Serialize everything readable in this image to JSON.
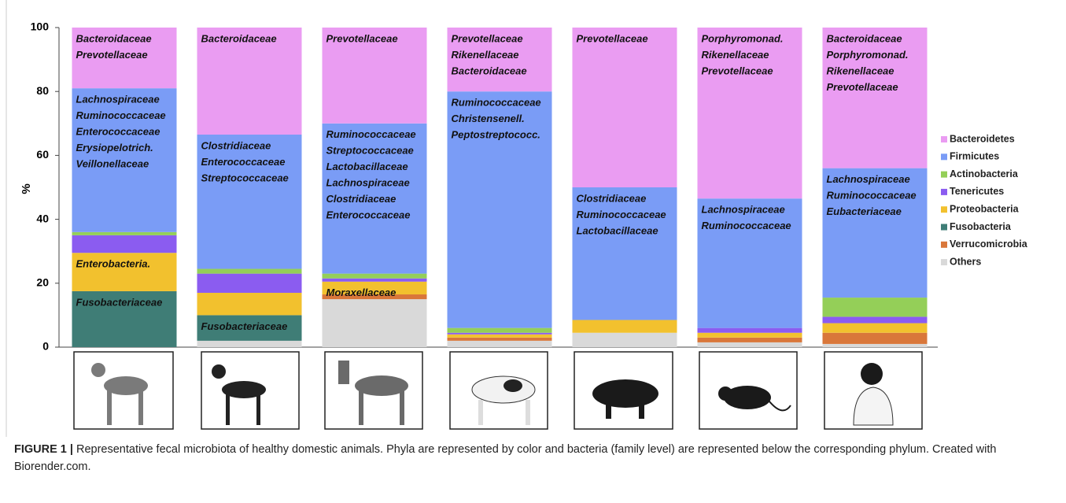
{
  "chart_data": {
    "type": "stacked_bar",
    "ylabel": "%",
    "categories": [
      null,
      null,
      null,
      null,
      null,
      null,
      null
    ],
    "ylim": [
      0,
      100
    ],
    "yticks": [
      0,
      20,
      40,
      60,
      80,
      100
    ],
    "legend": "right",
    "series": [
      {
        "name": "Bacteroidetes",
        "color": "#ea9cf2",
        "values": [
          19,
          33.5,
          30,
          20,
          50,
          53.5,
          44
        ],
        "families": [
          [
            "Bacteroidaceae",
            "Prevotellaceae"
          ],
          [
            "Bacteroidaceae"
          ],
          [
            "Prevotellaceae"
          ],
          [
            "Prevotellaceae",
            "Rikenellaceae",
            "Bacteroidaceae"
          ],
          [
            "Prevotellaceae"
          ],
          [
            "Porphyromonad.",
            "Rikenellaceae",
            "Prevotellaceae"
          ],
          [
            "Bacteroidaceae",
            "Porphyromonad.",
            "Rikenellaceae",
            "Prevotellaceae"
          ]
        ]
      },
      {
        "name": "Firmicutes",
        "color": "#7a9cf6",
        "values": [
          45,
          42,
          47,
          74,
          41.5,
          40.5,
          40.5
        ],
        "families": [
          [
            "Lachnospiraceae",
            "Ruminococcaceae",
            "Enterococcaceae",
            "Erysiopelotrich.",
            "Veillonellaceae"
          ],
          [
            "Clostridiaceae",
            "Enterococcaceae",
            "Streptococcaceae"
          ],
          [
            "Ruminococcaceae",
            "Streptococcaceae",
            "Lactobacillaceae",
            "Lachnospiraceae",
            "Clostridiaceae",
            "Enterococcaceae"
          ],
          [
            "Ruminococcaceae",
            "Christensenell.",
            "Peptostreptococc."
          ],
          [
            "Clostridiaceae",
            "Ruminococcaceae",
            "Lactobacillaceae"
          ],
          [
            "Lachnospiraceae",
            "Ruminococcaceae"
          ],
          [
            "Lachnospiraceae",
            "Ruminococcaceae",
            "Eubacteriaceae"
          ]
        ]
      },
      {
        "name": "Actinobacteria",
        "color": "#94cf58",
        "values": [
          1,
          1.5,
          1.5,
          1.5,
          0,
          0,
          6
        ]
      },
      {
        "name": "Tenericutes",
        "color": "#8b5cf0",
        "values": [
          5.5,
          6,
          1,
          0.5,
          0,
          1.5,
          2
        ]
      },
      {
        "name": "Proteobacteria",
        "color": "#f2c12e",
        "values": [
          12,
          7,
          4,
          1,
          4,
          1.5,
          3
        ],
        "families": [
          [
            "Enterobacteria."
          ],
          [],
          [
            "Moraxellaceae"
          ],
          [],
          [],
          [],
          []
        ]
      },
      {
        "name": "Fusobacteria",
        "color": "#3f7d76",
        "values": [
          17.5,
          8,
          0,
          0,
          0,
          0,
          0
        ],
        "families": [
          [
            "Fusobacteriaceae"
          ],
          [
            "Fusobacteriaceae"
          ],
          [],
          [],
          [],
          [],
          []
        ]
      },
      {
        "name": "Verrucomicrobia",
        "color": "#d9773a",
        "values": [
          0,
          0,
          1.5,
          1,
          0,
          1.5,
          3.5
        ]
      },
      {
        "name": "Others",
        "color": "#d9d9d9",
        "values": [
          0,
          2,
          15,
          2,
          4.5,
          1.5,
          1
        ]
      }
    ]
  },
  "caption": {
    "label": "FIGURE 1 |",
    "text": "Representative fecal microbiota of healthy domestic animals. Phyla are represented by color and bacteria (family level) are represented below the corresponding phylum. Created with Biorender.com."
  }
}
